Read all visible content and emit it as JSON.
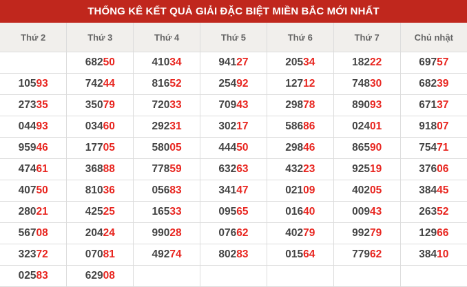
{
  "title": "THỐNG KÊ KẾT QUẢ GIẢI ĐẶC BIỆT MIỀN BẮC MỚI NHẤT",
  "columns": [
    "Thứ 2",
    "Thứ 3",
    "Thứ 4",
    "Thứ 5",
    "Thứ 6",
    "Thứ 7",
    "Chủ nhật"
  ],
  "rows": [
    [
      "",
      "68250",
      "41034",
      "94127",
      "20534",
      "18222",
      "69757"
    ],
    [
      "10593",
      "74244",
      "81652",
      "25492",
      "12712",
      "74830",
      "68239"
    ],
    [
      "27335",
      "35079",
      "72033",
      "70943",
      "29878",
      "89093",
      "67137"
    ],
    [
      "04493",
      "03460",
      "29231",
      "30217",
      "58686",
      "02401",
      "91807"
    ],
    [
      "95946",
      "17705",
      "58005",
      "44450",
      "29846",
      "86590",
      "75471"
    ],
    [
      "47461",
      "36888",
      "77859",
      "63263",
      "43223",
      "92519",
      "37606"
    ],
    [
      "40750",
      "81036",
      "05683",
      "34147",
      "02109",
      "40205",
      "38445"
    ],
    [
      "28021",
      "42525",
      "16533",
      "09565",
      "01640",
      "00943",
      "26352"
    ],
    [
      "56708",
      "20424",
      "99028",
      "07662",
      "40279",
      "99279",
      "12966"
    ],
    [
      "32372",
      "07081",
      "49274",
      "80283",
      "01564",
      "77962",
      "38410"
    ],
    [
      "02583",
      "62908",
      "",
      "",
      "",
      "",
      ""
    ]
  ],
  "colors": {
    "header_bg": "#c0271d",
    "highlight": "#e8251f",
    "text": "#444444"
  }
}
